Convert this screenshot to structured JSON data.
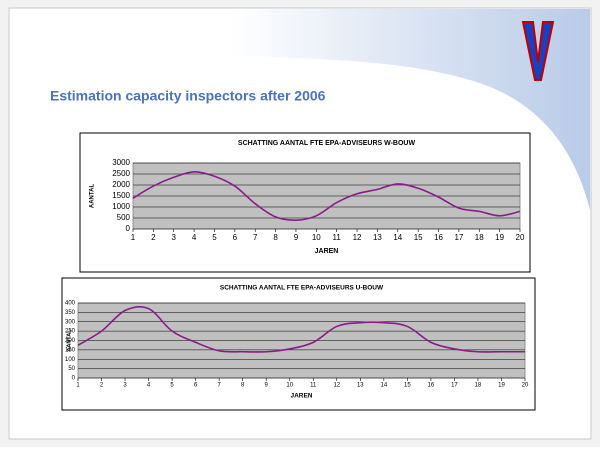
{
  "title": "Estimation capacity inspectors after 2006",
  "chart_data": [
    {
      "type": "line",
      "title": "SCHATTING AANTAL FTE EPA-ADVISEURS W-BOUW",
      "x_label": "JAREN",
      "y_label": "AANTAL",
      "categories": [
        "1",
        "2",
        "3",
        "4",
        "5",
        "6",
        "7",
        "8",
        "9",
        "10",
        "11",
        "12",
        "13",
        "14",
        "15",
        "16",
        "17",
        "18",
        "19",
        "20"
      ],
      "series": [
        {
          "color": "#8b1a8b",
          "values": [
            1400,
            1950,
            2350,
            2600,
            2400,
            1950,
            1150,
            550,
            400,
            600,
            1200,
            1600,
            1800,
            2050,
            1850,
            1450,
            950,
            800,
            600,
            800
          ]
        }
      ],
      "ylim": [
        0,
        3000
      ],
      "yticks": [
        0,
        500,
        1000,
        1500,
        2000,
        2500,
        3000
      ],
      "grid": true
    },
    {
      "type": "line",
      "title": "SCHATTING AANTAL FTE EPA-ADVISEURS U-BOUW",
      "x_label": "JAREN",
      "y_label": "AANTAL",
      "categories": [
        "1",
        "2",
        "3",
        "4",
        "5",
        "6",
        "7",
        "8",
        "9",
        "10",
        "11",
        "12",
        "13",
        "14",
        "15",
        "16",
        "17",
        "18",
        "19",
        "20"
      ],
      "series": [
        {
          "color": "#8b1a8b",
          "values": [
            175,
            250,
            360,
            370,
            250,
            190,
            145,
            140,
            140,
            155,
            190,
            275,
            295,
            295,
            275,
            190,
            155,
            140,
            140,
            140
          ]
        }
      ],
      "ylim": [
        0,
        400
      ],
      "yticks": [
        0,
        50,
        100,
        150,
        200,
        250,
        300,
        350,
        400
      ],
      "grid": true
    }
  ]
}
